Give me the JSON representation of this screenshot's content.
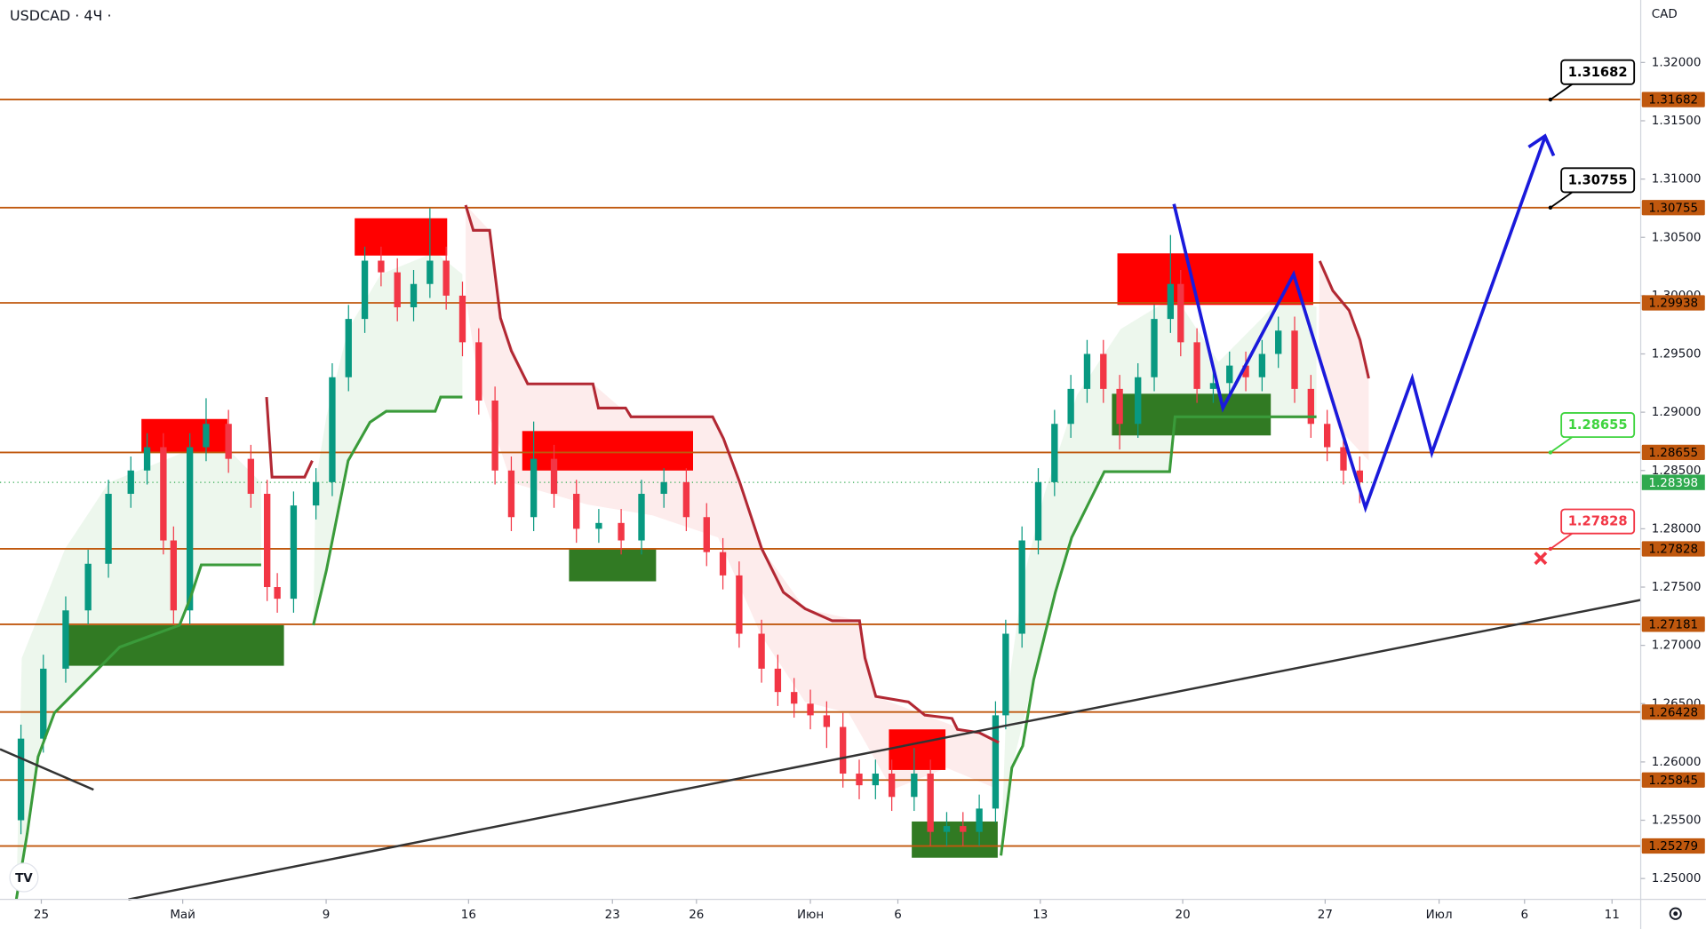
{
  "chart_data": {
    "type": "candlestick",
    "title": "USDCAD · 4Ч ·",
    "currency": "CAD",
    "up_color": "#089981",
    "down_color": "#f23645",
    "xlim": [
      -2.03,
      78.61
    ],
    "xticks": [
      {
        "value": 0,
        "label": "25"
      },
      {
        "value": 6.95,
        "label": "Май"
      },
      {
        "value": 14,
        "label": "9"
      },
      {
        "value": 21,
        "label": "16"
      },
      {
        "value": 28.07,
        "label": "23"
      },
      {
        "value": 32.2,
        "label": "26"
      },
      {
        "value": 37.8,
        "label": "Июн"
      },
      {
        "value": 42.1,
        "label": "6"
      },
      {
        "value": 49.1,
        "label": "13"
      },
      {
        "value": 56.1,
        "label": "20"
      },
      {
        "value": 63.1,
        "label": "27"
      },
      {
        "value": 68.7,
        "label": "Июл"
      },
      {
        "value": 72.9,
        "label": "6"
      },
      {
        "value": 77.2,
        "label": "11"
      }
    ],
    "ylim": [
      1.24821,
      1.32536
    ],
    "yticks": [
      {
        "value": 1.25,
        "label": "1.25000"
      },
      {
        "value": 1.255,
        "label": "1.25500"
      },
      {
        "value": 1.26,
        "label": "1.26000"
      },
      {
        "value": 1.265,
        "label": "1.26500"
      },
      {
        "value": 1.27,
        "label": "1.27000"
      },
      {
        "value": 1.275,
        "label": "1.27500"
      },
      {
        "value": 1.28,
        "label": "1.28000"
      },
      {
        "value": 1.285,
        "label": "1.28500"
      },
      {
        "value": 1.29,
        "label": "1.29000"
      },
      {
        "value": 1.295,
        "label": "1.29500"
      },
      {
        "value": 1.3,
        "label": "1.30000"
      },
      {
        "value": 1.305,
        "label": "1.30500"
      },
      {
        "value": 1.31,
        "label": "1.31000"
      },
      {
        "value": 1.315,
        "label": "1.31500"
      },
      {
        "value": 1.32,
        "label": "1.32000"
      }
    ],
    "levels": [
      1.31682,
      1.30755,
      1.29938,
      1.28655,
      1.27828,
      1.27181,
      1.26428,
      1.25845,
      1.25279
    ],
    "level_color": "#c0580e",
    "current_price": 1.28398,
    "current_color": "#2fa94e",
    "callouts": [
      {
        "value": 1.31682,
        "color": "#000000"
      },
      {
        "value": 1.30755,
        "color": "#000000"
      },
      {
        "value": 1.28655,
        "color": "#3fd43f"
      },
      {
        "value": 1.27828,
        "color": "#f23645"
      }
    ],
    "candles": [
      [
        -1.0,
        1.255,
        1.2632,
        1.2538,
        1.262
      ],
      [
        0.1,
        1.262,
        1.2692,
        1.2608,
        1.268
      ],
      [
        1.2,
        1.268,
        1.2742,
        1.2668,
        1.273
      ],
      [
        2.3,
        1.273,
        1.2782,
        1.2718,
        1.277
      ],
      [
        3.3,
        1.277,
        1.2842,
        1.2758,
        1.283
      ],
      [
        4.4,
        1.283,
        1.2862,
        1.2818,
        1.285
      ],
      [
        5.2,
        1.285,
        1.2882,
        1.2838,
        1.287
      ],
      [
        6.0,
        1.287,
        1.2882,
        1.2778,
        1.279
      ],
      [
        6.5,
        1.279,
        1.2802,
        1.2718,
        1.273
      ],
      [
        7.3,
        1.273,
        1.2882,
        1.2718,
        1.287
      ],
      [
        8.1,
        1.287,
        1.2912,
        1.2858,
        1.289
      ],
      [
        9.2,
        1.289,
        1.2902,
        1.2848,
        1.286
      ],
      [
        10.3,
        1.286,
        1.2872,
        1.2818,
        1.283
      ],
      [
        11.1,
        1.283,
        1.2842,
        1.2738,
        1.275
      ],
      [
        11.6,
        1.275,
        1.2762,
        1.2728,
        1.274
      ],
      [
        12.4,
        1.274,
        1.2832,
        1.2728,
        1.282
      ],
      [
        13.5,
        1.282,
        1.2852,
        1.2808,
        1.284
      ],
      [
        14.3,
        1.284,
        1.2942,
        1.2828,
        1.293
      ],
      [
        15.1,
        1.293,
        1.2992,
        1.2918,
        1.298
      ],
      [
        15.9,
        1.298,
        1.3042,
        1.2968,
        1.303
      ],
      [
        16.7,
        1.303,
        1.3042,
        1.3008,
        1.302
      ],
      [
        17.5,
        1.302,
        1.3032,
        1.2978,
        1.299
      ],
      [
        18.3,
        1.299,
        1.3022,
        1.2978,
        1.301
      ],
      [
        19.1,
        1.301,
        1.3075,
        1.2998,
        1.303
      ],
      [
        19.9,
        1.303,
        1.3042,
        1.2988,
        1.3
      ],
      [
        20.7,
        1.3,
        1.3012,
        1.2948,
        1.296
      ],
      [
        21.5,
        1.296,
        1.2972,
        1.2898,
        1.291
      ],
      [
        22.3,
        1.291,
        1.2922,
        1.2838,
        1.285
      ],
      [
        23.1,
        1.285,
        1.2862,
        1.2798,
        1.281
      ],
      [
        24.2,
        1.281,
        1.2892,
        1.2798,
        1.286
      ],
      [
        25.2,
        1.286,
        1.2872,
        1.2818,
        1.283
      ],
      [
        26.3,
        1.283,
        1.2842,
        1.2788,
        1.28
      ],
      [
        27.4,
        1.28,
        1.2817,
        1.2788,
        1.2805
      ],
      [
        28.5,
        1.2805,
        1.2817,
        1.2778,
        1.279
      ],
      [
        29.5,
        1.279,
        1.2842,
        1.2778,
        1.283
      ],
      [
        30.6,
        1.283,
        1.2852,
        1.2818,
        1.284
      ],
      [
        31.7,
        1.284,
        1.2852,
        1.2798,
        1.281
      ],
      [
        32.7,
        1.281,
        1.2822,
        1.2768,
        1.278
      ],
      [
        33.5,
        1.278,
        1.2792,
        1.2748,
        1.276
      ],
      [
        34.3,
        1.276,
        1.2772,
        1.2698,
        1.271
      ],
      [
        35.4,
        1.271,
        1.2722,
        1.2668,
        1.268
      ],
      [
        36.2,
        1.268,
        1.2692,
        1.2648,
        1.266
      ],
      [
        37.0,
        1.266,
        1.2672,
        1.2638,
        1.265
      ],
      [
        37.8,
        1.265,
        1.2662,
        1.2628,
        1.264
      ],
      [
        38.6,
        1.264,
        1.2652,
        1.2612,
        1.263
      ],
      [
        39.4,
        1.263,
        1.2642,
        1.2578,
        1.259
      ],
      [
        40.2,
        1.259,
        1.2602,
        1.2568,
        1.258
      ],
      [
        41.0,
        1.258,
        1.2602,
        1.2568,
        1.259
      ],
      [
        41.8,
        1.259,
        1.2602,
        1.2558,
        1.257
      ],
      [
        42.9,
        1.257,
        1.2612,
        1.2558,
        1.259
      ],
      [
        43.7,
        1.259,
        1.2602,
        1.2528,
        1.254
      ],
      [
        44.5,
        1.254,
        1.2557,
        1.2528,
        1.2545
      ],
      [
        45.3,
        1.2545,
        1.2557,
        1.2528,
        1.254
      ],
      [
        46.1,
        1.254,
        1.2572,
        1.2528,
        1.256
      ],
      [
        46.9,
        1.256,
        1.2652,
        1.2548,
        1.264
      ],
      [
        47.4,
        1.264,
        1.2722,
        1.2628,
        1.271
      ],
      [
        48.2,
        1.271,
        1.2802,
        1.2698,
        1.279
      ],
      [
        49.0,
        1.279,
        1.2852,
        1.2778,
        1.284
      ],
      [
        49.8,
        1.284,
        1.2902,
        1.2828,
        1.289
      ],
      [
        50.6,
        1.289,
        1.2932,
        1.2878,
        1.292
      ],
      [
        51.4,
        1.292,
        1.2962,
        1.2908,
        1.295
      ],
      [
        52.2,
        1.295,
        1.2962,
        1.2908,
        1.292
      ],
      [
        53.0,
        1.292,
        1.2932,
        1.2868,
        1.289
      ],
      [
        53.9,
        1.289,
        1.2942,
        1.2878,
        1.293
      ],
      [
        54.7,
        1.293,
        1.2992,
        1.2918,
        1.298
      ],
      [
        55.5,
        1.298,
        1.3052,
        1.2968,
        1.301
      ],
      [
        56.0,
        1.301,
        1.3022,
        1.2948,
        1.296
      ],
      [
        56.8,
        1.296,
        1.2972,
        1.2908,
        1.292
      ],
      [
        57.6,
        1.292,
        1.2937,
        1.2908,
        1.2925
      ],
      [
        58.4,
        1.2925,
        1.2952,
        1.2913,
        1.294
      ],
      [
        59.2,
        1.294,
        1.2952,
        1.2918,
        1.293
      ],
      [
        60.0,
        1.293,
        1.2962,
        1.2918,
        1.295
      ],
      [
        60.8,
        1.295,
        1.2982,
        1.2938,
        1.297
      ],
      [
        61.6,
        1.297,
        1.2982,
        1.2908,
        1.292
      ],
      [
        62.4,
        1.292,
        1.2932,
        1.2878,
        1.289
      ],
      [
        63.2,
        1.289,
        1.2902,
        1.2858,
        1.287
      ],
      [
        64.0,
        1.287,
        1.2882,
        1.2838,
        1.285
      ],
      [
        64.8,
        1.285,
        1.2862,
        1.2822,
        1.28398
      ]
    ]
  }
}
